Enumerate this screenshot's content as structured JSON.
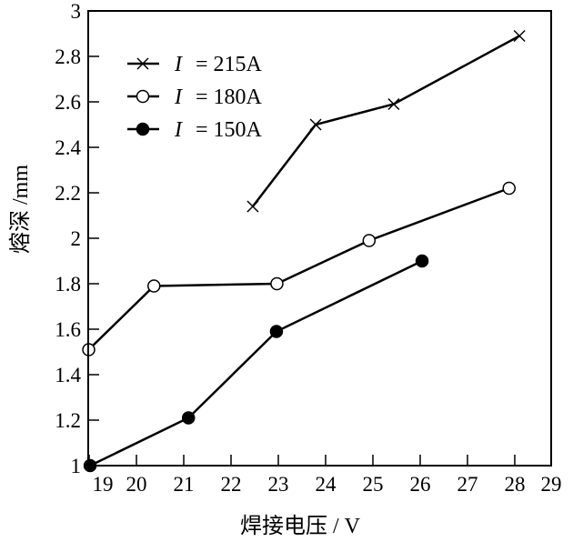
{
  "chart_data": {
    "type": "line",
    "title": "",
    "xlabel": "焊接电压 / V",
    "ylabel": "熔深 /mm",
    "xlim": [
      18.98,
      28.77
    ],
    "ylim": [
      1,
      3
    ],
    "xticks": [
      19,
      20,
      21,
      22,
      23,
      24,
      25,
      26,
      27,
      28,
      29
    ],
    "yticks": [
      1,
      1.2,
      1.4,
      1.6,
      1.8,
      2,
      2.2,
      2.4,
      2.6,
      2.8,
      3
    ],
    "ytick_labels": [
      "1",
      "1.2",
      "1.4",
      "1.6",
      "1.8",
      "2",
      "2.2",
      "2.4",
      "2.6",
      "2.8",
      "3"
    ],
    "grid": false,
    "legend_position": "top-left",
    "series": [
      {
        "name": "I = 215A",
        "label_var": "I",
        "label_value": "= 215A",
        "marker": "x",
        "x": [
          22.46,
          23.79,
          25.44,
          28.1
        ],
        "y": [
          2.14,
          2.5,
          2.59,
          2.89
        ]
      },
      {
        "name": "I = 180A",
        "label_var": "I",
        "label_value": "= 180A",
        "marker": "open-circle",
        "x": [
          18.99,
          20.37,
          22.97,
          24.92,
          27.88
        ],
        "y": [
          1.51,
          1.79,
          1.8,
          1.99,
          2.22
        ]
      },
      {
        "name": "I = 150A",
        "label_var": "I",
        "label_value": "= 150A",
        "marker": "filled-circle",
        "x": [
          19.02,
          21.1,
          22.96,
          26.04
        ],
        "y": [
          1.0,
          1.21,
          1.59,
          1.9
        ]
      }
    ]
  }
}
